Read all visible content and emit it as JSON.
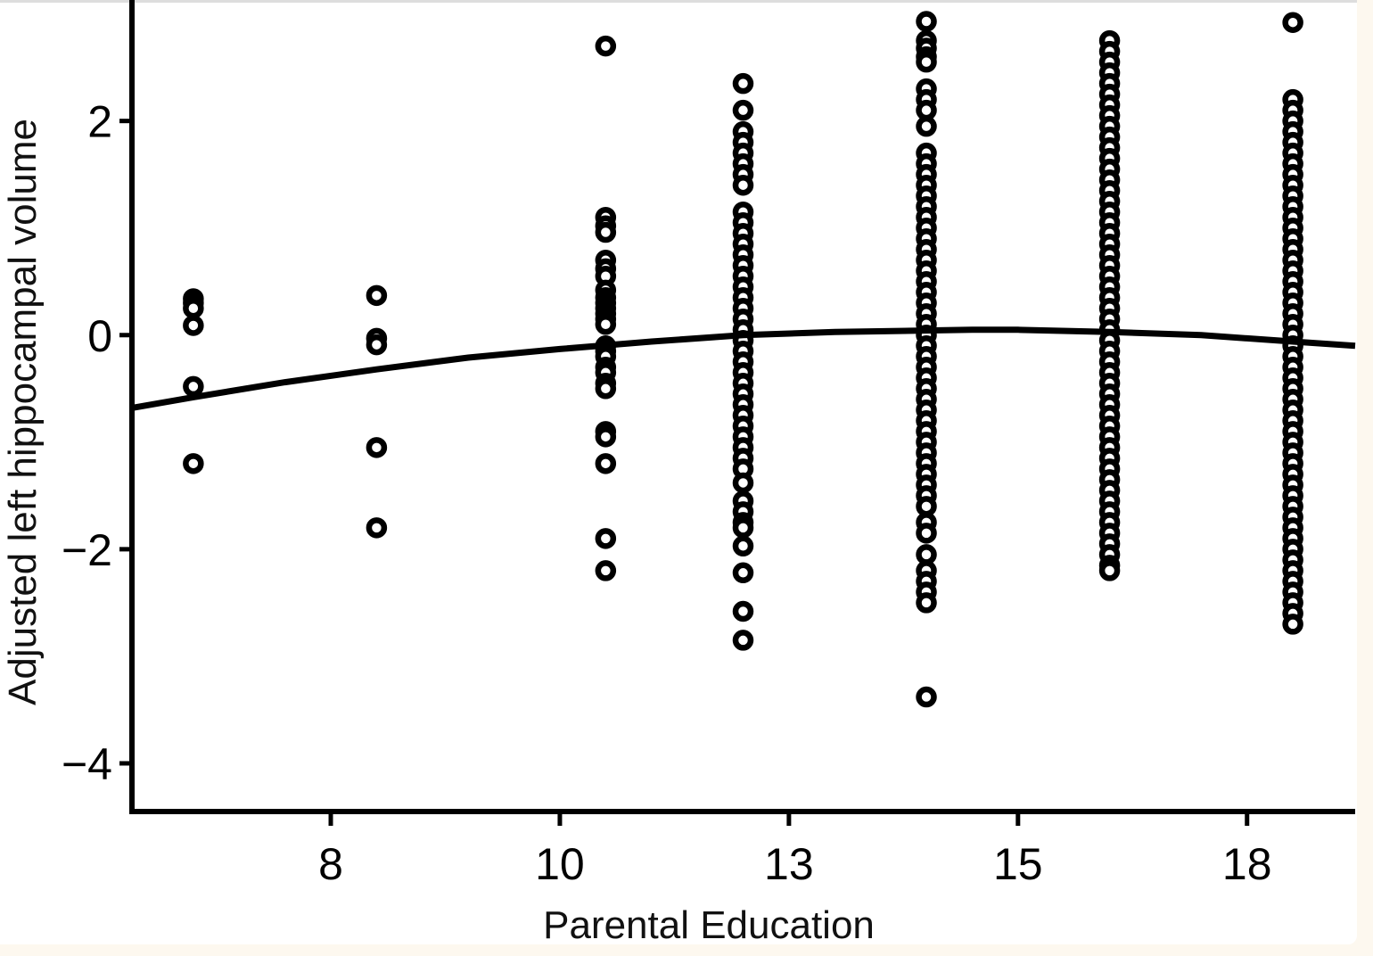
{
  "chart_data": {
    "type": "scatter",
    "title": "",
    "xlabel": "Parental Education",
    "ylabel": "Adjusted left hippocampal volume",
    "xlim": [
      5.33,
      18.68
    ],
    "ylim": [
      -4.45,
      3.13
    ],
    "grid": false,
    "x_ticks": [
      {
        "value": 7.5,
        "label": "8"
      },
      {
        "value": 10,
        "label": "10"
      },
      {
        "value": 12.5,
        "label": "13"
      },
      {
        "value": 15,
        "label": "15"
      },
      {
        "value": 17.5,
        "label": "18"
      }
    ],
    "y_ticks": [
      {
        "value": 2,
        "label": "2"
      },
      {
        "value": 0,
        "label": "0"
      },
      {
        "value": -2,
        "label": "−2"
      },
      {
        "value": -4,
        "label": "−4"
      }
    ],
    "marker": "open-circle",
    "color": "#000000",
    "columns": [
      {
        "x": 6,
        "y": [
          0.34,
          0.3,
          0.25,
          0.09,
          -0.48,
          -1.2
        ]
      },
      {
        "x": 8,
        "y": [
          0.37,
          -0.03,
          -0.09,
          -1.05,
          -1.8
        ]
      },
      {
        "x": 10.5,
        "y": [
          2.7,
          1.1,
          1.02,
          0.96,
          0.7,
          0.62,
          0.55,
          0.42,
          0.35,
          0.3,
          0.25,
          0.2,
          0.15,
          0.1,
          -0.1,
          -0.15,
          -0.2,
          -0.3,
          -0.35,
          -0.45,
          -0.5,
          -0.9,
          -0.95,
          -1.2,
          -1.9,
          -2.2
        ]
      },
      {
        "x": 12,
        "y": [
          2.35,
          2.1,
          1.9,
          1.8,
          1.7,
          1.6,
          1.5,
          1.4,
          1.15,
          1.05,
          0.95,
          0.85,
          0.75,
          0.65,
          0.55,
          0.45,
          0.35,
          0.25,
          0.15,
          0.05,
          -0.05,
          -0.15,
          -0.25,
          -0.35,
          -0.45,
          -0.55,
          -0.65,
          -0.75,
          -0.85,
          -0.95,
          -1.05,
          -1.15,
          -1.25,
          -1.38,
          -1.55,
          -1.65,
          -1.75,
          -1.8,
          -1.97,
          -2.22,
          -2.58,
          -2.85
        ]
      },
      {
        "x": 14,
        "y": [
          2.93,
          2.75,
          2.68,
          2.6,
          2.55,
          2.3,
          2.2,
          2.1,
          1.95,
          1.7,
          1.6,
          1.5,
          1.4,
          1.3,
          1.2,
          1.1,
          1.0,
          0.9,
          0.8,
          0.7,
          0.6,
          0.5,
          0.4,
          0.3,
          0.2,
          0.1,
          0.0,
          -0.1,
          -0.2,
          -0.3,
          -0.4,
          -0.5,
          -0.6,
          -0.7,
          -0.8,
          -0.9,
          -1.0,
          -1.1,
          -1.2,
          -1.3,
          -1.4,
          -1.5,
          -1.6,
          -1.75,
          -1.85,
          -2.05,
          -2.2,
          -2.3,
          -2.4,
          -2.5,
          -3.38
        ]
      },
      {
        "x": 16,
        "y": [
          2.75,
          2.65,
          2.55,
          2.45,
          2.35,
          2.25,
          2.15,
          2.05,
          1.95,
          1.85,
          1.75,
          1.65,
          1.55,
          1.45,
          1.35,
          1.25,
          1.15,
          1.05,
          0.95,
          0.85,
          0.75,
          0.65,
          0.55,
          0.45,
          0.35,
          0.25,
          0.15,
          0.05,
          -0.05,
          -0.15,
          -0.25,
          -0.35,
          -0.45,
          -0.55,
          -0.65,
          -0.75,
          -0.85,
          -0.95,
          -1.05,
          -1.15,
          -1.25,
          -1.35,
          -1.45,
          -1.55,
          -1.65,
          -1.75,
          -1.85,
          -1.95,
          -2.05,
          -2.15,
          -2.2
        ]
      },
      {
        "x": 18,
        "y": [
          2.92,
          2.2,
          2.1,
          2.0,
          1.9,
          1.8,
          1.7,
          1.6,
          1.5,
          1.4,
          1.3,
          1.2,
          1.1,
          1.0,
          0.9,
          0.8,
          0.7,
          0.6,
          0.5,
          0.4,
          0.3,
          0.2,
          0.1,
          0.0,
          -0.1,
          -0.2,
          -0.3,
          -0.4,
          -0.5,
          -0.6,
          -0.7,
          -0.8,
          -0.9,
          -1.0,
          -1.1,
          -1.2,
          -1.3,
          -1.4,
          -1.5,
          -1.6,
          -1.7,
          -1.8,
          -1.9,
          -2.0,
          -2.1,
          -2.2,
          -2.3,
          -2.4,
          -2.5,
          -2.6,
          -2.7
        ]
      }
    ],
    "fit_line": {
      "type": "quadratic",
      "x": [
        5.33,
        6,
        7,
        8,
        9,
        10,
        11,
        12,
        13,
        14.5,
        15,
        16,
        17,
        18,
        18.68
      ],
      "y": [
        -0.68,
        -0.58,
        -0.44,
        -0.32,
        -0.21,
        -0.13,
        -0.06,
        0.0,
        0.03,
        0.05,
        0.05,
        0.03,
        0.0,
        -0.06,
        -0.1
      ]
    }
  }
}
